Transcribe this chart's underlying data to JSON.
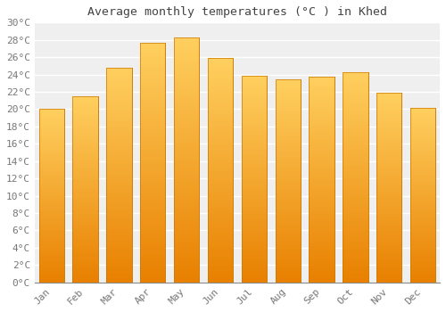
{
  "title": "Average monthly temperatures (°C ) in Khed",
  "months": [
    "Jan",
    "Feb",
    "Mar",
    "Apr",
    "May",
    "Jun",
    "Jul",
    "Aug",
    "Sep",
    "Oct",
    "Nov",
    "Dec"
  ],
  "values": [
    20.0,
    21.5,
    24.8,
    27.7,
    28.3,
    25.9,
    23.9,
    23.4,
    23.8,
    24.3,
    21.9,
    20.2
  ],
  "bar_color_top": "#FFD060",
  "bar_color_bottom": "#E88000",
  "bar_edge_color": "#CC7700",
  "background_color": "#FFFFFF",
  "plot_bg_color": "#EFEFEF",
  "grid_color": "#FFFFFF",
  "title_color": "#444444",
  "tick_label_color": "#777777",
  "ylim": [
    0,
    30
  ],
  "ytick_step": 2,
  "title_fontsize": 9.5,
  "tick_fontsize": 8,
  "font_family": "monospace"
}
